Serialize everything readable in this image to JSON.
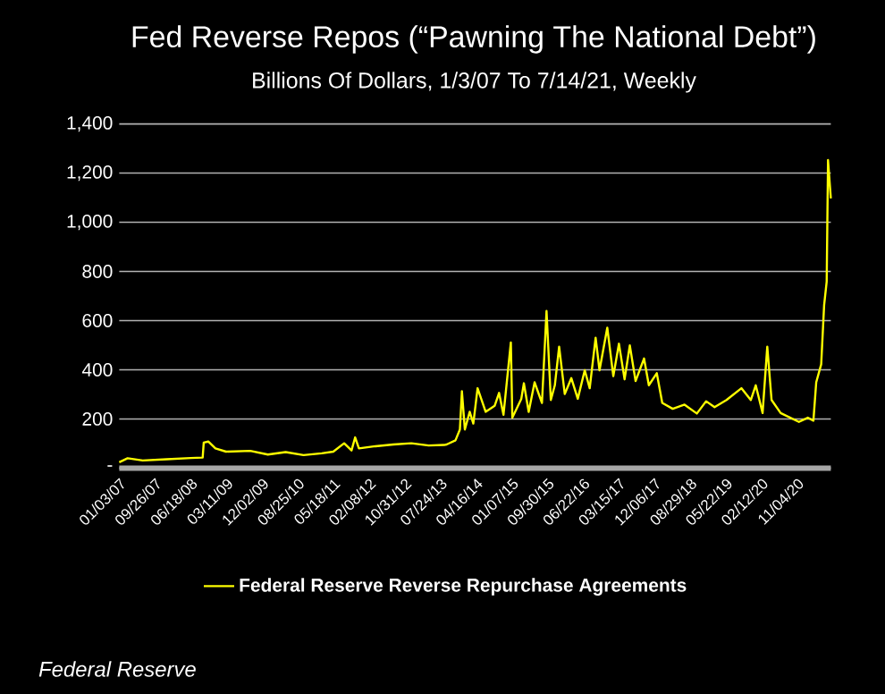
{
  "chart_data": {
    "type": "line",
    "title": "Fed Reverse Repos (“Pawning The National Debt”)",
    "subtitle": "Billions Of Dollars, 1/3/07 To 7/14/21, Weekly",
    "annotations": [
      "Federal Reserve"
    ],
    "x": [
      "2007-01-03",
      "2007-03-06",
      "2007-06-27",
      "2007-12-24",
      "2008-06-20",
      "2008-09-16",
      "2008-09-24",
      "2008-10-28",
      "2008-12-20",
      "2009-03-09",
      "2009-09-06",
      "2010-01-15",
      "2010-05-28",
      "2010-10-08",
      "2011-02-21",
      "2011-05-18",
      "2011-08-07",
      "2011-10-01",
      "2011-10-28",
      "2011-11-25",
      "2012-03-27",
      "2012-08-07",
      "2012-12-20",
      "2013-04-28",
      "2013-08-21",
      "2013-09-09",
      "2013-11-14",
      "2013-12-17",
      "2014-01-01",
      "2014-01-23",
      "2014-02-28",
      "2014-03-27",
      "2014-04-28",
      "2014-06-27",
      "2014-09-02",
      "2014-10-05",
      "2014-11-07",
      "2015-01-01",
      "2015-01-12",
      "2015-03-20",
      "2015-04-08",
      "2015-05-14",
      "2015-06-27",
      "2015-08-21",
      "2015-09-24",
      "2015-10-26",
      "2015-11-25",
      "2015-12-27",
      "2016-02-07",
      "2016-03-27",
      "2016-05-14",
      "2016-07-05",
      "2016-08-11",
      "2016-09-24",
      "2016-10-23",
      "2016-12-20",
      "2017-02-03",
      "2017-03-17",
      "2017-04-28",
      "2017-06-06",
      "2017-07-19",
      "2017-09-20",
      "2017-10-26",
      "2017-12-24",
      "2018-02-03",
      "2018-04-22",
      "2018-07-19",
      "2018-10-19",
      "2018-12-27",
      "2019-02-28",
      "2019-05-28",
      "2019-09-16",
      "2019-11-25",
      "2020-01-01",
      "2020-02-21",
      "2020-03-27",
      "2020-04-28",
      "2020-07-05",
      "2020-11-18",
      "2021-01-23",
      "2021-03-06",
      "2021-03-27",
      "2021-05-03",
      "2021-05-25",
      "2021-06-13",
      "2021-06-23",
      "2021-07-14"
    ],
    "series": [
      {
        "name": "Federal Reserve Reverse Repurchase Agreements",
        "color": "#ffff00",
        "values": [
          24,
          40,
          31,
          36,
          41,
          43,
          104,
          108,
          80,
          67,
          70,
          55,
          65,
          53,
          60,
          67,
          101,
          72,
          125,
          80,
          89,
          96,
          101,
          92,
          94,
          96,
          113,
          157,
          313,
          157,
          229,
          181,
          325,
          229,
          253,
          306,
          217,
          511,
          205,
          282,
          345,
          229,
          349,
          265,
          639,
          277,
          337,
          494,
          301,
          366,
          282,
          398,
          325,
          530,
          398,
          571,
          374,
          506,
          361,
          499,
          354,
          446,
          337,
          386,
          265,
          241,
          258,
          222,
          272,
          248,
          277,
          325,
          277,
          337,
          224,
          494,
          277,
          224,
          188,
          205,
          193,
          349,
          422,
          663,
          759,
          1253,
          1097
        ]
      }
    ],
    "xlim": [
      "2007-01-03",
      "2021-07-14"
    ],
    "xticks": [
      {
        "value": "2007-01-03",
        "label": "01/03/07"
      },
      {
        "value": "2007-09-26",
        "label": "09/26/07"
      },
      {
        "value": "2008-06-18",
        "label": "06/18/08"
      },
      {
        "value": "2009-03-11",
        "label": "03/11/09"
      },
      {
        "value": "2009-12-02",
        "label": "12/02/09"
      },
      {
        "value": "2010-08-25",
        "label": "08/25/10"
      },
      {
        "value": "2011-05-18",
        "label": "05/18/11"
      },
      {
        "value": "2012-02-08",
        "label": "02/08/12"
      },
      {
        "value": "2012-10-31",
        "label": "10/31/12"
      },
      {
        "value": "2013-07-24",
        "label": "07/24/13"
      },
      {
        "value": "2014-04-16",
        "label": "04/16/14"
      },
      {
        "value": "2015-01-07",
        "label": "01/07/15"
      },
      {
        "value": "2015-09-30",
        "label": "09/30/15"
      },
      {
        "value": "2016-06-22",
        "label": "06/22/16"
      },
      {
        "value": "2017-03-15",
        "label": "03/15/17"
      },
      {
        "value": "2017-12-06",
        "label": "12/06/17"
      },
      {
        "value": "2018-08-29",
        "label": "08/29/18"
      },
      {
        "value": "2019-05-22",
        "label": "05/22/19"
      },
      {
        "value": "2020-02-12",
        "label": "02/12/20"
      },
      {
        "value": "2020-11-04",
        "label": "11/04/20"
      }
    ],
    "ylim": [
      0,
      1400
    ],
    "yticks": [
      {
        "value": 0,
        "label": "-"
      },
      200,
      400,
      600,
      800,
      {
        "value": 1000,
        "label": "1,000"
      },
      {
        "value": 1200,
        "label": "1,200"
      },
      {
        "value": 1400,
        "label": "1,400"
      }
    ],
    "grid": "y",
    "legend": "bottom",
    "marker": "none",
    "line_style": "solid"
  }
}
